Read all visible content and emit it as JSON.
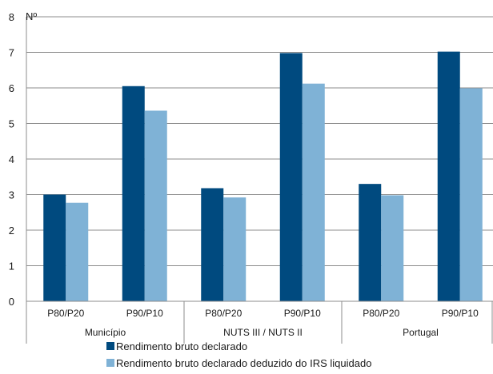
{
  "chart_data": {
    "type": "bar",
    "unit_label": "Nº",
    "ylim": [
      0,
      8
    ],
    "yticks": [
      "0",
      "1",
      "2",
      "3",
      "4",
      "5",
      "6",
      "7",
      "8"
    ],
    "grid": true,
    "legend_position": "bottom",
    "groups": [
      {
        "label": "Município",
        "categories": [
          "P80/P20",
          "P90/P10"
        ]
      },
      {
        "label": "NUTS III / NUTS II",
        "categories": [
          "P80/P20",
          "P90/P10"
        ]
      },
      {
        "label": "Portugal",
        "categories": [
          "P80/P20",
          "P90/P10"
        ]
      }
    ],
    "categories": [
      "P80/P20",
      "P90/P10",
      "P80/P20",
      "P90/P10",
      "P80/P20",
      "P90/P10"
    ],
    "series": [
      {
        "name": "Rendimento bruto declarado",
        "color": "#004a7f",
        "values": [
          3.0,
          6.05,
          3.18,
          6.98,
          3.3,
          7.02
        ]
      },
      {
        "name": "Rendimento bruto declarado deduzido do IRS liquidado",
        "color": "#7fb2d6",
        "values": [
          2.77,
          5.36,
          2.92,
          6.12,
          2.98,
          5.99
        ]
      }
    ]
  }
}
